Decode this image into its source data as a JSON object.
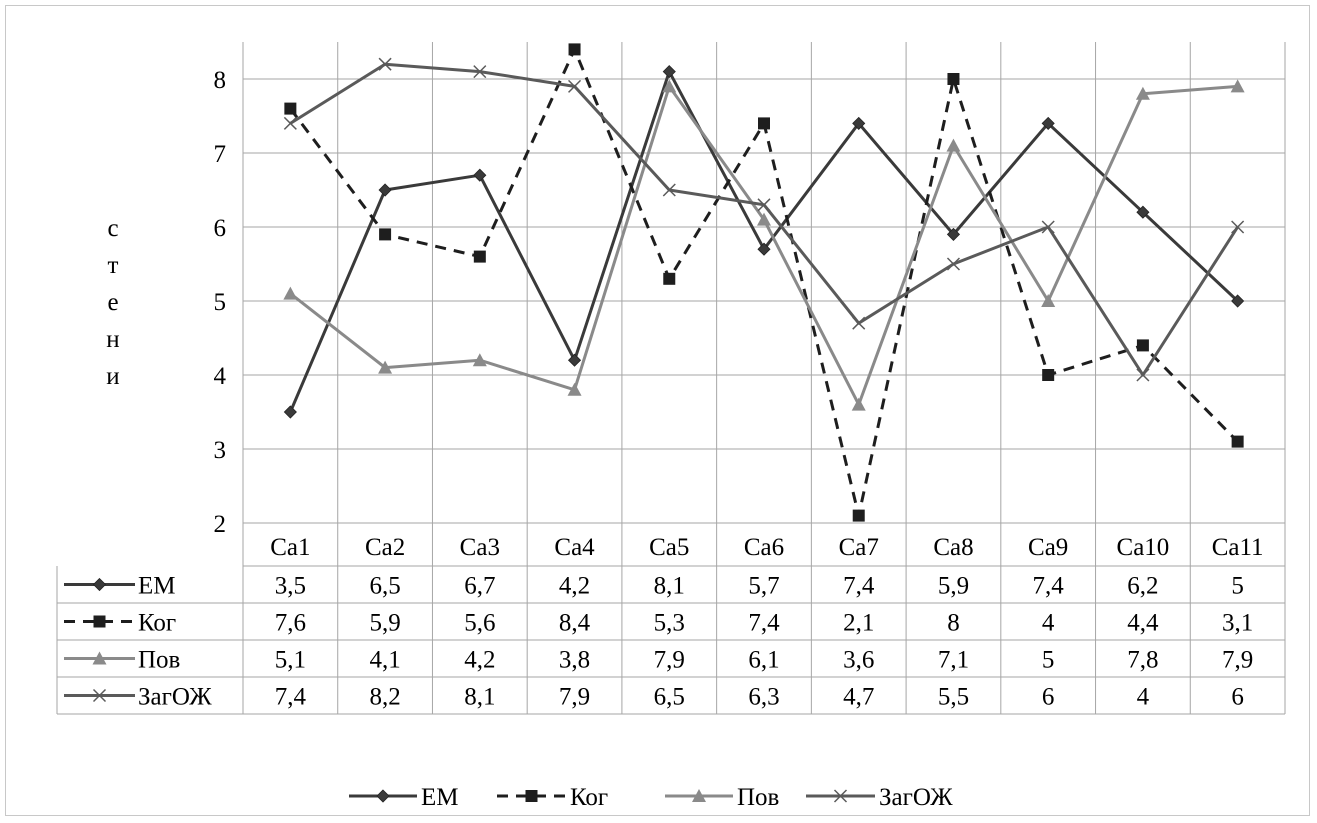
{
  "chart_data": {
    "type": "line",
    "ylabel": "стени",
    "ylim": [
      2,
      8.5
    ],
    "yticks": [
      2,
      3,
      4,
      5,
      6,
      7,
      8
    ],
    "grid": true,
    "legend_position": "bottom",
    "data_table": true,
    "categories": [
      "Ca1",
      "Ca2",
      "Ca3",
      "Ca4",
      "Ca5",
      "Ca6",
      "Ca7",
      "Ca8",
      "Ca9",
      "Ca10",
      "Ca11"
    ],
    "series": [
      {
        "name": "ЕМ",
        "values": [
          3.5,
          6.5,
          6.7,
          4.2,
          8.1,
          5.7,
          7.4,
          5.9,
          7.4,
          6.2,
          5
        ],
        "labels": [
          "3,5",
          "6,5",
          "6,7",
          "4,2",
          "8,1",
          "5,7",
          "7,4",
          "5,9",
          "7,4",
          "6,2",
          "5"
        ],
        "color": "#3a3a3a",
        "dash": "solid",
        "marker": "diamond"
      },
      {
        "name": "Ког",
        "values": [
          7.6,
          5.9,
          5.6,
          8.4,
          5.3,
          7.4,
          2.1,
          8,
          4,
          4.4,
          3.1
        ],
        "labels": [
          "7,6",
          "5,9",
          "5,6",
          "8,4",
          "5,3",
          "7,4",
          "2,1",
          "8",
          "4",
          "4,4",
          "3,1"
        ],
        "color": "#1e1e1e",
        "dash": "dashed",
        "marker": "square"
      },
      {
        "name": "Пов",
        "values": [
          5.1,
          4.1,
          4.2,
          3.8,
          7.9,
          6.1,
          3.6,
          7.1,
          5,
          7.8,
          7.9
        ],
        "labels": [
          "5,1",
          "4,1",
          "4,2",
          "3,8",
          "7,9",
          "6,1",
          "3,6",
          "7,1",
          "5",
          "7,8",
          "7,9"
        ],
        "color": "#8a8a8a",
        "dash": "solid",
        "marker": "triangle"
      },
      {
        "name": "ЗагОЖ",
        "values": [
          7.4,
          8.2,
          8.1,
          7.9,
          6.5,
          6.3,
          4.7,
          5.5,
          6,
          4,
          6
        ],
        "labels": [
          "7,4",
          "8,2",
          "8,1",
          "7,9",
          "6,5",
          "6,3",
          "4,7",
          "5,5",
          "6",
          "4",
          "6"
        ],
        "color": "#5a5a5a",
        "dash": "solid",
        "marker": "x"
      }
    ]
  }
}
